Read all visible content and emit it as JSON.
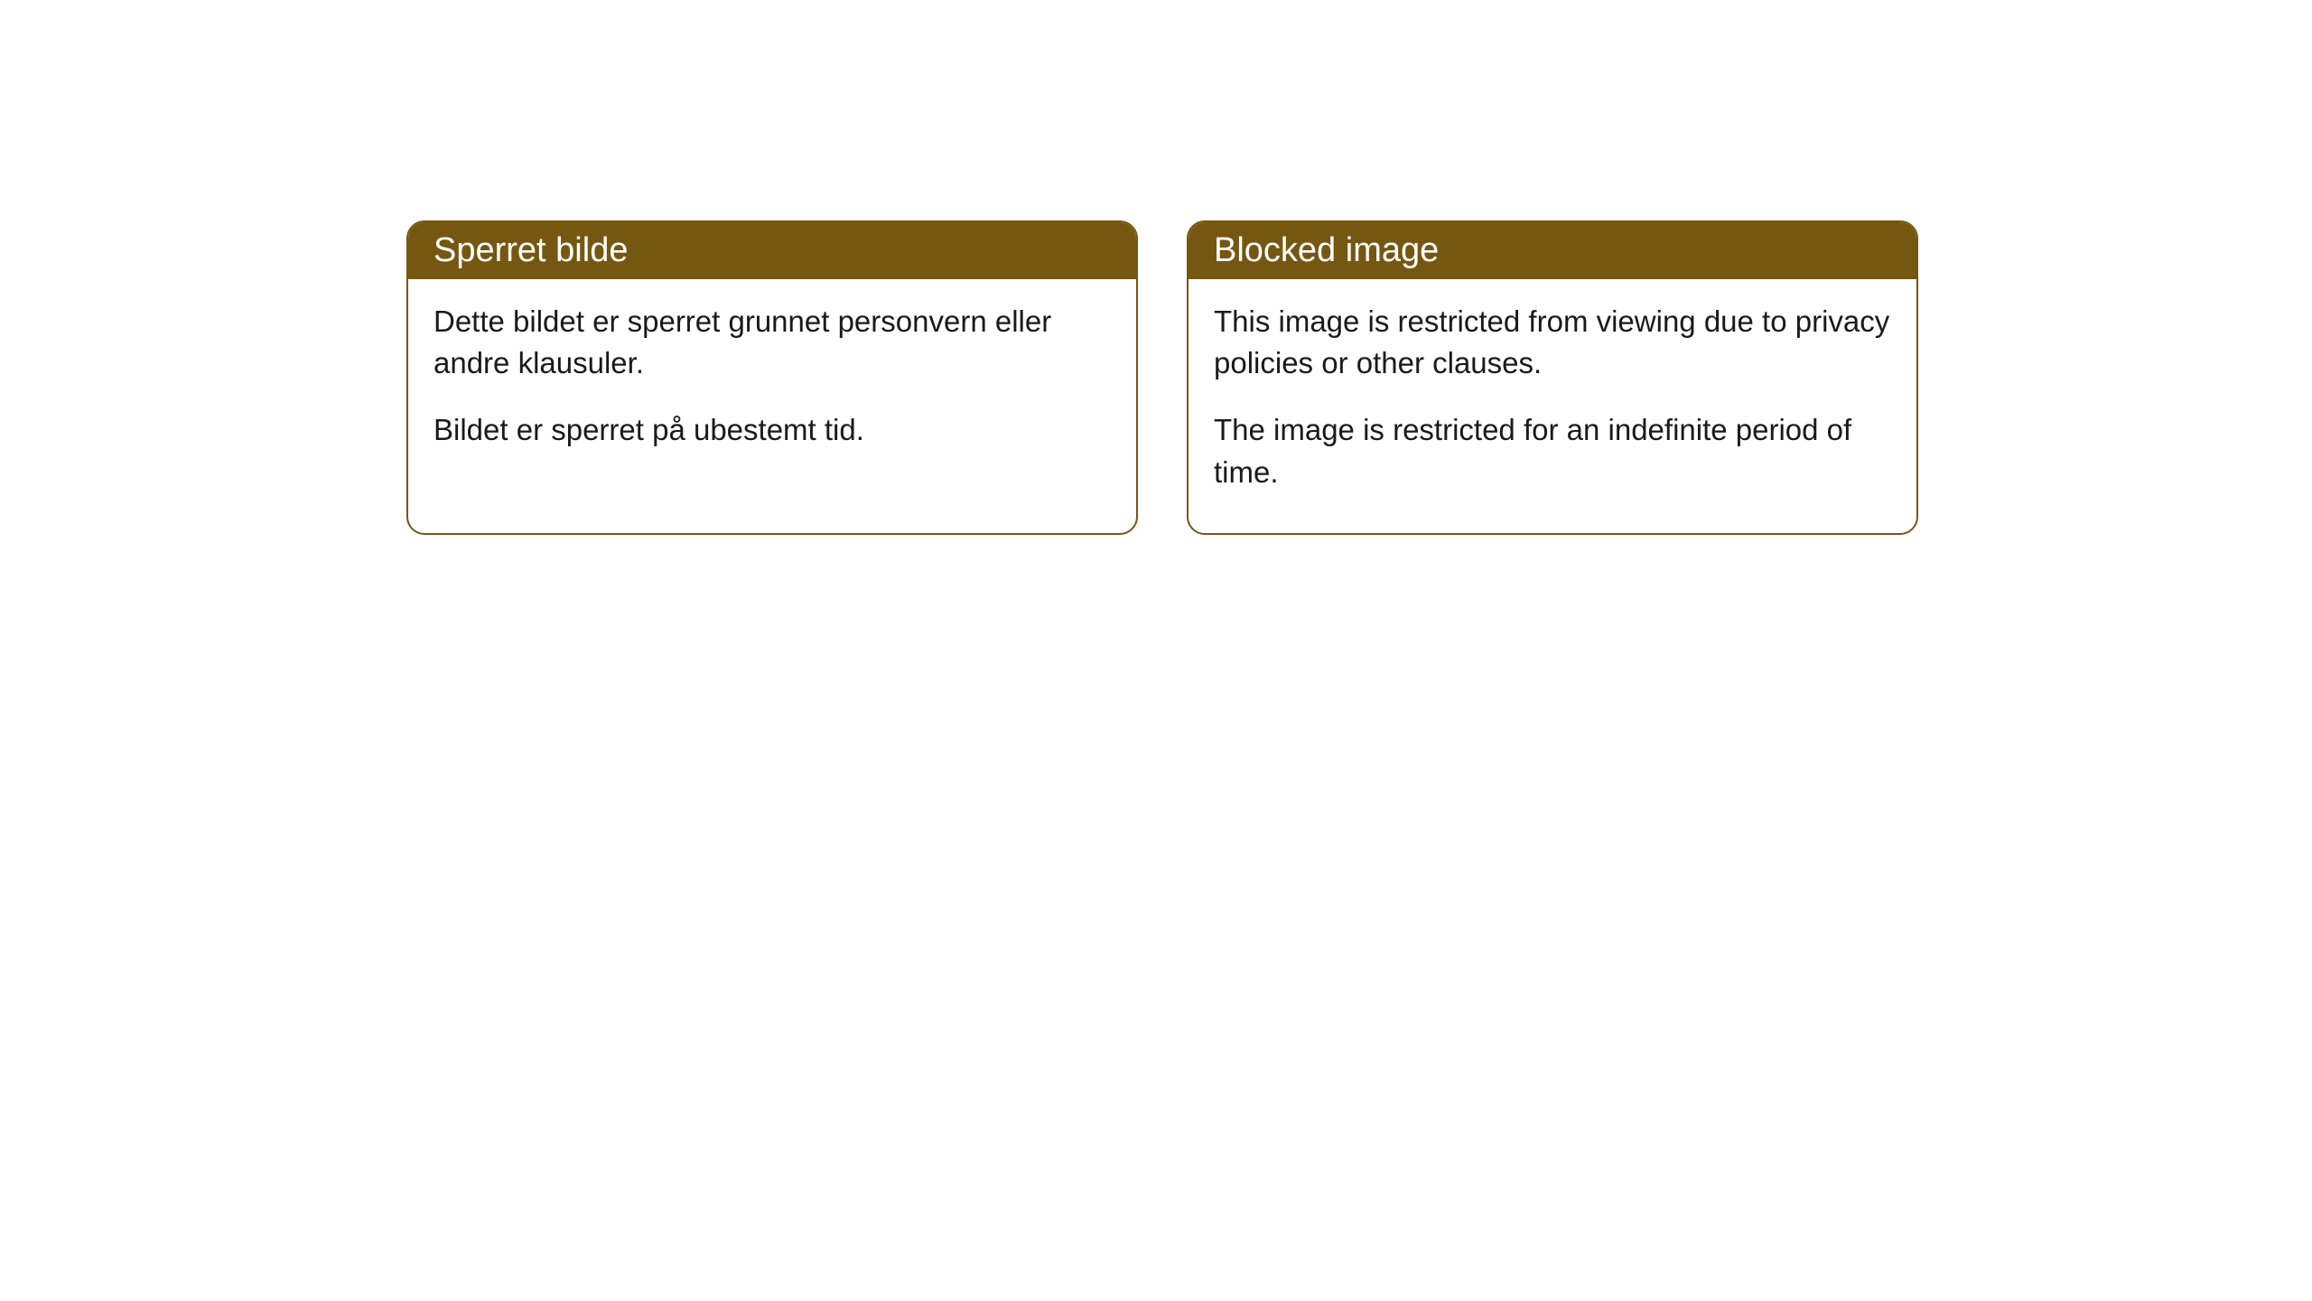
{
  "cards": {
    "left": {
      "title": "Sperret bilde",
      "paragraph1": "Dette bildet er sperret grunnet personvern eller andre klausuler.",
      "paragraph2": "Bildet er sperret på ubestemt tid."
    },
    "right": {
      "title": "Blocked image",
      "paragraph1": "This image is restricted from viewing due to privacy policies or other clauses.",
      "paragraph2": "The image is restricted for an indefinite period of time."
    }
  },
  "styling": {
    "header_background": "#765711",
    "header_text_color": "#ffffff",
    "border_color": "#765711",
    "body_background": "#ffffff",
    "body_text_color": "#1a1a1a",
    "border_radius": 20,
    "header_fontsize": 38,
    "body_fontsize": 33
  }
}
